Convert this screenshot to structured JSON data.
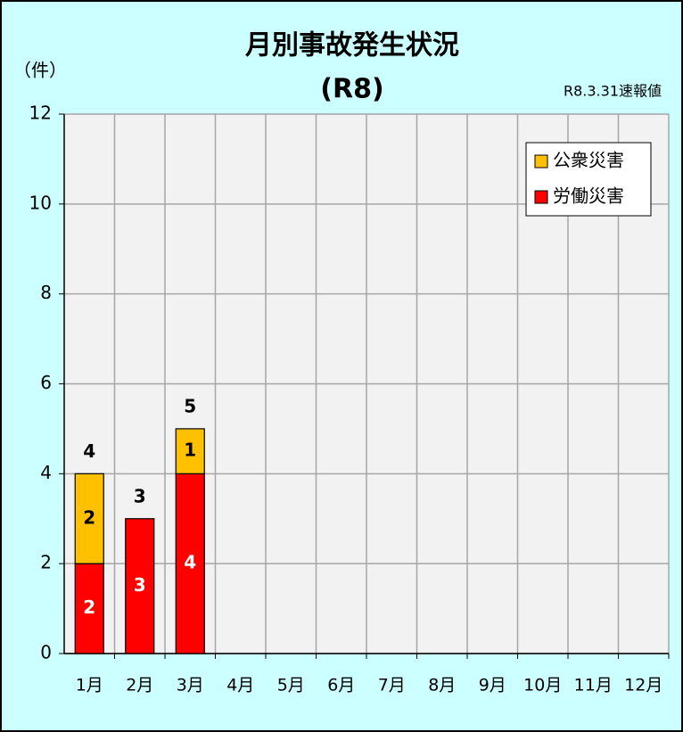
{
  "chart_data": {
    "type": "stacked_bar",
    "title": "月別事故発生状況",
    "subtitle": "(R8)",
    "y_label": "（件）",
    "note": "R8.3.31速報値",
    "categories": [
      "1月",
      "2月",
      "3月",
      "4月",
      "5月",
      "6月",
      "7月",
      "8月",
      "9月",
      "10月",
      "11月",
      "12月"
    ],
    "series": [
      {
        "name": "労働災害",
        "color": "#ff0000",
        "label_color": "#ffffff",
        "values": [
          2,
          3,
          4,
          null,
          null,
          null,
          null,
          null,
          null,
          null,
          null,
          null
        ]
      },
      {
        "name": "公衆災害",
        "color": "#ffc000",
        "label_color": "#000000",
        "values": [
          2,
          null,
          1,
          null,
          null,
          null,
          null,
          null,
          null,
          null,
          null,
          null
        ]
      }
    ],
    "total_labels": [
      "4",
      "3",
      "5",
      null,
      null,
      null,
      null,
      null,
      null,
      null,
      null,
      null
    ],
    "ylim": [
      0,
      12
    ],
    "yticks": [
      0,
      2,
      4,
      6,
      8,
      10,
      12
    ],
    "grid": true,
    "legend": "upper right"
  }
}
